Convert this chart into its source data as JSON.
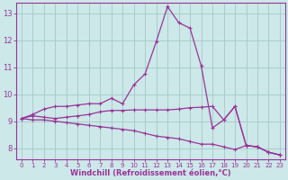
{
  "xlabel": "Windchill (Refroidissement éolien,°C)",
  "x": [
    0,
    1,
    2,
    3,
    4,
    5,
    6,
    7,
    8,
    9,
    10,
    11,
    12,
    13,
    14,
    15,
    16,
    17,
    18,
    19,
    20,
    21,
    22,
    23
  ],
  "line1": [
    9.1,
    9.25,
    9.45,
    9.55,
    9.55,
    9.6,
    9.65,
    9.65,
    9.85,
    9.65,
    10.35,
    10.75,
    11.95,
    13.25,
    12.65,
    12.45,
    11.05,
    8.75,
    9.05,
    9.55,
    8.1,
    8.05,
    7.85,
    7.75
  ],
  "line2": [
    9.1,
    9.2,
    9.15,
    9.1,
    9.15,
    9.2,
    9.25,
    9.35,
    9.4,
    9.4,
    9.42,
    9.42,
    9.42,
    9.42,
    9.45,
    9.5,
    9.52,
    9.55,
    9.05,
    9.55,
    8.1,
    8.05,
    7.85,
    7.75
  ],
  "line3": [
    9.1,
    9.05,
    9.05,
    9.0,
    8.95,
    8.9,
    8.85,
    8.8,
    8.75,
    8.7,
    8.65,
    8.55,
    8.45,
    8.4,
    8.35,
    8.25,
    8.15,
    8.15,
    8.05,
    7.95,
    8.1,
    8.05,
    7.85,
    7.75
  ],
  "line_color": "#993399",
  "bg_color": "#cce8e8",
  "grid_color": "#aacccc",
  "ylim": [
    7.6,
    13.4
  ],
  "xlim": [
    -0.5,
    23.5
  ],
  "yticks": [
    8,
    9,
    10,
    11,
    12,
    13
  ],
  "xticks": [
    0,
    1,
    2,
    3,
    4,
    5,
    6,
    7,
    8,
    9,
    10,
    11,
    12,
    13,
    14,
    15,
    16,
    17,
    18,
    19,
    20,
    21,
    22,
    23
  ]
}
